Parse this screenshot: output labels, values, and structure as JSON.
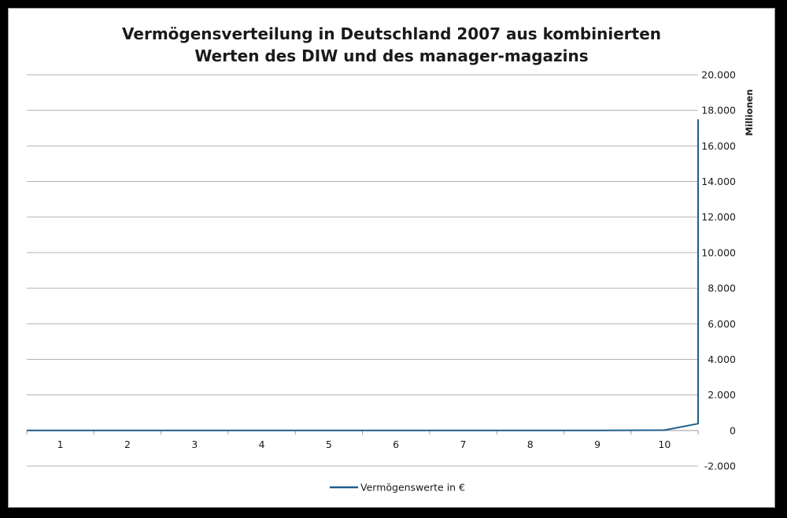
{
  "chart_data": {
    "type": "line",
    "title_lines": [
      "Vermögensverteilung in Deutschland 2007 aus kombinierten",
      "Werten des DIW und des manager-magazins"
    ],
    "ylabel": "Millionen",
    "xlabel": "",
    "categories": [
      "1",
      "2",
      "3",
      "4",
      "5",
      "6",
      "7",
      "8",
      "9",
      "10"
    ],
    "x_range": [
      0.5,
      10.5
    ],
    "y_ticks": [
      -2000,
      0,
      2000,
      4000,
      6000,
      8000,
      10000,
      12000,
      14000,
      16000,
      18000,
      20000
    ],
    "y_tick_labels": [
      "-2.000",
      "0",
      "2.000",
      "4.000",
      "6.000",
      "8.000",
      "10.000",
      "12.000",
      "14.000",
      "16.000",
      "18.000",
      "20.000"
    ],
    "ylim": [
      -2000,
      20000
    ],
    "y_axis_side": "right",
    "grid": true,
    "legend_position": "bottom",
    "series": [
      {
        "name": "Vermögenswerte in €",
        "color": "#1f5f8b",
        "x": [
          0.5,
          1,
          2,
          3,
          4,
          5,
          6,
          7,
          8,
          9,
          10,
          10.5,
          10.5
        ],
        "values": [
          0,
          0,
          0,
          0,
          0,
          0,
          0,
          0,
          0,
          0,
          20,
          380,
          17500
        ]
      }
    ]
  }
}
